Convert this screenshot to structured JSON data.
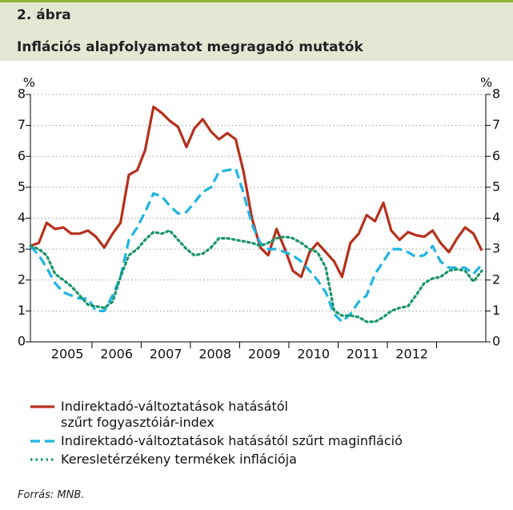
{
  "header": {
    "label": "2. ábra",
    "title": "Inflációs alapfolyamatot megragadó mutatók"
  },
  "chart_data": {
    "type": "line",
    "y_unit": "%",
    "y2_unit": "%",
    "xlim": [
      2004.75,
      2014.0
    ],
    "xticks": [
      {
        "value": 2005.5,
        "label": "2005"
      },
      {
        "value": 2006.5,
        "label": "2006"
      },
      {
        "value": 2007.5,
        "label": "2007"
      },
      {
        "value": 2008.5,
        "label": "2008"
      },
      {
        "value": 2009.5,
        "label": "2009"
      },
      {
        "value": 2010.5,
        "label": "2010"
      },
      {
        "value": 2011.5,
        "label": "2011"
      },
      {
        "value": 2012.5,
        "label": "2012"
      }
    ],
    "ylim": [
      0,
      8
    ],
    "yticks": [
      0,
      1,
      2,
      3,
      4,
      5,
      6,
      7,
      8
    ],
    "y2lim": [
      0,
      8
    ],
    "y2ticks": [
      0,
      1,
      2,
      3,
      4,
      5,
      6,
      7,
      8
    ],
    "grid": true,
    "x": [
      2004.75,
      2004.92,
      2005.08,
      2005.25,
      2005.42,
      2005.58,
      2005.75,
      2005.92,
      2006.08,
      2006.25,
      2006.42,
      2006.58,
      2006.75,
      2006.92,
      2007.08,
      2007.25,
      2007.42,
      2007.58,
      2007.75,
      2007.92,
      2008.08,
      2008.25,
      2008.42,
      2008.58,
      2008.75,
      2008.92,
      2009.08,
      2009.25,
      2009.42,
      2009.58,
      2009.75,
      2009.92,
      2010.08,
      2010.25,
      2010.42,
      2010.58,
      2010.75,
      2010.92,
      2011.08,
      2011.25,
      2011.42,
      2011.58,
      2011.75,
      2011.92,
      2012.08,
      2012.25,
      2012.42,
      2012.58,
      2012.75,
      2012.92,
      2013.08,
      2013.25,
      2013.42,
      2013.58,
      2013.75,
      2013.92
    ],
    "series": [
      {
        "name": "Indirektadó-változtatások hatásától szűrt fogyasztóiár-index",
        "color": "#b5301b",
        "style": "solid",
        "values": [
          3.1,
          3.2,
          3.85,
          3.65,
          3.7,
          3.5,
          3.5,
          3.6,
          3.4,
          3.05,
          3.5,
          3.85,
          5.4,
          5.55,
          6.2,
          7.6,
          7.4,
          7.15,
          6.95,
          6.3,
          6.9,
          7.2,
          6.8,
          6.55,
          6.75,
          6.55,
          5.5,
          4.0,
          3.05,
          2.8,
          3.65,
          3.0,
          2.3,
          2.1,
          2.9,
          3.2,
          2.9,
          2.6,
          2.1,
          3.2,
          3.5,
          4.1,
          3.9,
          4.5,
          3.6,
          3.3,
          3.55,
          3.45,
          3.4,
          3.6,
          3.2,
          2.9,
          3.35,
          3.7,
          3.5,
          2.95
        ]
      },
      {
        "name": "Indirektadó-változtatások hatásától szűrt maginfláció",
        "color": "#1fb4e3",
        "style": "dashed",
        "values": [
          3.1,
          2.8,
          2.4,
          1.9,
          1.6,
          1.5,
          1.4,
          1.4,
          1.0,
          1.0,
          1.5,
          2.1,
          3.3,
          3.7,
          4.2,
          4.8,
          4.7,
          4.4,
          4.15,
          4.2,
          4.5,
          4.85,
          5.0,
          5.5,
          5.55,
          5.6,
          4.8,
          3.8,
          3.2,
          3.0,
          3.0,
          2.9,
          2.8,
          2.6,
          2.3,
          2.0,
          1.6,
          0.9,
          0.65,
          0.9,
          1.3,
          1.5,
          2.2,
          2.6,
          3.0,
          3.0,
          2.9,
          2.75,
          2.8,
          3.1,
          2.6,
          2.4,
          2.4,
          2.4,
          2.2,
          2.5
        ]
      },
      {
        "name": "Keresletérzékeny termékek inflációja",
        "color": "#18956a",
        "style": "dotted",
        "values": [
          3.1,
          3.0,
          2.8,
          2.2,
          2.0,
          1.8,
          1.5,
          1.2,
          1.15,
          1.1,
          1.3,
          2.1,
          2.8,
          3.0,
          3.3,
          3.55,
          3.5,
          3.6,
          3.3,
          3.0,
          2.8,
          2.85,
          3.05,
          3.35,
          3.35,
          3.3,
          3.25,
          3.2,
          3.1,
          3.2,
          3.35,
          3.4,
          3.35,
          3.2,
          3.0,
          2.9,
          2.4,
          1.0,
          0.85,
          0.85,
          0.8,
          0.65,
          0.65,
          0.8,
          1.0,
          1.1,
          1.15,
          1.5,
          1.9,
          2.05,
          2.1,
          2.3,
          2.35,
          2.3,
          1.95,
          2.3
        ]
      }
    ]
  },
  "source": "Forrás: MNB."
}
